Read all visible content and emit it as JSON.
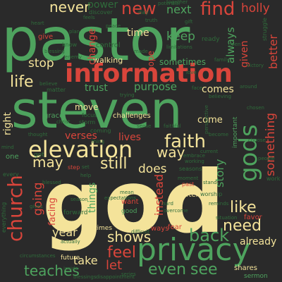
{
  "words": {
    "god": "god",
    "pastor": "pastor",
    "steven": "steven",
    "information": "information",
    "privacy": "privacy",
    "elevation": "elevation",
    "faith": "faith",
    "gods": "gods",
    "church": "church",
    "never": "never",
    "new": "new",
    "find": "find",
    "holly": "holly",
    "next": "next",
    "power": "power",
    "keep": "keep",
    "always": "always",
    "better": "better",
    "time": "time",
    "change": "change",
    "stop": "stop",
    "life": "life",
    "trust": "trust",
    "purpose": "purpose",
    "comes": "comes",
    "right": "right",
    "something": "something",
    "story": "story",
    "still": "still",
    "may": "may",
    "way": "way",
    "does": "does",
    "going": "going",
    "verses": "verses",
    "lives": "lives",
    "come": "come",
    "like": "like",
    "need": "need",
    "back": "back",
    "shows": "shows",
    "feel": "feel",
    "let": "let",
    "even": "even",
    "see": "see",
    "teaches": "teaches",
    "already": "already",
    "year": "year",
    "take": "take",
    "move": "move",
    "focus": "focus",
    "storm": "storm",
    "challenges": "challenges",
    "grace": "grace",
    "things": "things",
    "instead": "instead",
    "facing": "facing",
    "sometimes": "sometimes",
    "walking": "walking",
    "hope": "hope",
    "give": "give",
    "matter": "matter",
    "one": "one",
    "every": "every",
    "everything": "everything",
    "forward": "forward",
    "good": "good",
    "want": "want",
    "got": "got",
    "ask": "ask",
    "often": "often",
    "seasons": "seasons",
    "fear": "fear",
    "ways": "ways",
    "times": "times",
    "favor": "favor",
    "shares": "shares",
    "sermon": "sermon",
    "future": "future",
    "blessing": "blessing",
    "know": "know",
    "enemy": "enemy",
    "made": "made",
    "control": "control",
    "discover": "discover",
    "feels": "feels",
    "day": "day",
    "together": "together",
    "potential": "potential",
    "ready": "ready",
    "struggle": "struggle",
    "worship": "worship",
    "important": "important",
    "perspective": "perspective",
    "become": "become",
    "thought": "thought",
    "coming": "coming",
    "mean": "mean",
    "expectations": "expectations",
    "difficult": "difficult",
    "actually": "actually",
    "blessings": "blessings",
    "disappointment": "disappointment",
    "inside": "inside",
    "work": "work",
    "set": "set",
    "step": "step",
    "help": "help",
    "current": "current",
    "face": "face",
    "limitations": "limitations",
    "mind": "mind",
    "family": "family",
    "given": "given",
    "plan": "plan",
    "gift": "gift",
    "victory": "victory",
    "trying": "trying",
    "faithful": "faithful",
    "past": "past",
    "believing": "believing",
    "chosen": "chosen",
    "circumstances": "circumstances",
    "overcome": "overcome",
    "hard": "hard",
    "sense": "sense",
    "stand": "stand",
    "situation": "situation",
    "believe": "believe",
    "christ": "christ",
    "around": "around",
    "choose": "choose",
    "love": "love",
    "thing": "thing",
    "blessed": "blessed",
    "gives": "gives",
    "moment": "moment",
    "series": "series",
    "embrace": "embrace",
    "working": "working",
    "reminds": "reminds",
    "truth": "truth",
    "heart": "heart",
    "peace": "peace",
    "open": "open",
    "people": "people",
    "season": "season"
  }
}
